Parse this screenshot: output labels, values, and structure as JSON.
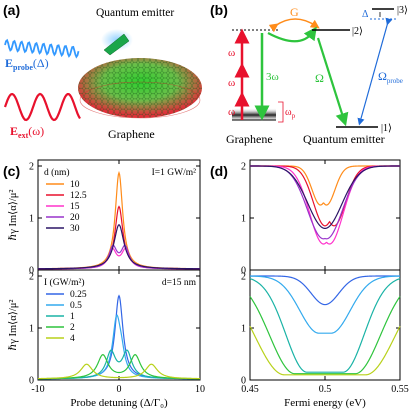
{
  "panels": {
    "a": {
      "label": "(a)",
      "quantum_emitter": "Quantum emitter",
      "graphene": "Graphene",
      "e_probe_main": "E",
      "e_probe_sub": "probe",
      "e_probe_arg": "(Δ)",
      "e_ext_main": "E",
      "e_ext_sub": "ext",
      "e_ext_arg": "(ω)"
    },
    "b": {
      "label": "(b)",
      "G": "G",
      "omega": "ω",
      "three_omega": "3ω",
      "Omega": "Ω",
      "Omega_probe_main": "Ω",
      "Omega_probe_sub": "probe",
      "omega_p_main": "ω",
      "omega_p_sub": "p",
      "Delta": "Δ",
      "ket2": "|2⟩",
      "ket3": "|3⟩",
      "ket1": "|1⟩",
      "graphene": "Graphene",
      "quantum_emitter": "Quantum emitter"
    },
    "c": {
      "label": "(c)"
    },
    "d": {
      "label": "(d)"
    }
  },
  "colors": {
    "orange": "#ff8c1a",
    "red": "#e8112d",
    "pink": "#ff33cc",
    "purple": "#9933cc",
    "navy": "#2b1566",
    "blue": "#3366e6",
    "sky": "#33aaee",
    "teal": "#1ab3a6",
    "yellowgreen": "#b8d11a",
    "green": "#2ec43d",
    "energy_blue": "#1f6bd9"
  },
  "chart_data": [
    {
      "id": "c-top",
      "type": "line",
      "ylabel": "ℏγ Im⟨α⟩/μ²",
      "ylim": [
        0,
        2
      ],
      "xlim": [
        -10,
        10
      ],
      "legend_title": "d (nm)",
      "annotation": "I=1 GW/m²",
      "series": [
        {
          "name": "10",
          "color": "#ff8c1a",
          "peaks": [
            {
              "x0": 0,
              "amp": 1.85,
              "w": 0.55
            }
          ]
        },
        {
          "name": "12.5",
          "color": "#e8112d",
          "peaks": [
            {
              "x0": 0,
              "amp": 1.2,
              "w": 0.6
            }
          ]
        },
        {
          "name": "15",
          "color": "#ff33cc",
          "peaks": [
            {
              "x0": -0.8,
              "amp": 0.35,
              "w": 0.6
            },
            {
              "x0": 0.8,
              "amp": 0.35,
              "w": 0.6
            }
          ]
        },
        {
          "name": "20",
          "color": "#9933cc",
          "peaks": [
            {
              "x0": -0.75,
              "amp": 0.4,
              "w": 0.6
            },
            {
              "x0": 0.75,
              "amp": 0.4,
              "w": 0.6
            }
          ]
        },
        {
          "name": "30",
          "color": "#2b1566",
          "peaks": [
            {
              "x0": 0,
              "amp": 0.85,
              "w": 0.75
            }
          ]
        }
      ]
    },
    {
      "id": "c-bottom",
      "type": "line",
      "xlabel": "Probe detuning (Δ/Γ₀)",
      "ylabel": "ℏγ Im⟨α⟩/μ²",
      "ylim": [
        0,
        2
      ],
      "xlim": [
        -10,
        10
      ],
      "xticks": [
        -10,
        0,
        10
      ],
      "legend_title": "I (GW/m²)",
      "annotation": "d=15 nm",
      "series": [
        {
          "name": "0.25",
          "color": "#3366e6",
          "peaks": [
            {
              "x0": 0,
              "amp": 1.6,
              "w": 0.6
            }
          ]
        },
        {
          "name": "0.5",
          "color": "#33aaee",
          "peaks": [
            {
              "x0": -0.3,
              "amp": 1.1,
              "w": 0.6
            },
            {
              "x0": 0.3,
              "amp": 0.3,
              "w": 0.5
            }
          ]
        },
        {
          "name": "1",
          "color": "#1ab3a6",
          "peaks": [
            {
              "x0": -1.0,
              "amp": 0.5,
              "w": 0.7
            },
            {
              "x0": 1.0,
              "amp": 0.5,
              "w": 0.7
            }
          ]
        },
        {
          "name": "2",
          "color": "#2ec43d",
          "peaks": [
            {
              "x0": -2.0,
              "amp": 0.45,
              "w": 0.8
            },
            {
              "x0": 2.0,
              "amp": 0.45,
              "w": 0.8
            }
          ]
        },
        {
          "name": "4",
          "color": "#b8d11a",
          "peaks": [
            {
              "x0": -4.0,
              "amp": 0.28,
              "w": 0.9
            },
            {
              "x0": 4.0,
              "amp": 0.28,
              "w": 0.9
            }
          ]
        }
      ]
    },
    {
      "id": "d-top",
      "type": "line",
      "ylim": [
        0,
        2
      ],
      "xlim": [
        0.45,
        0.55
      ],
      "series": [
        {
          "color": "#ff8c1a",
          "center": 0.499,
          "depth": 0.75,
          "width": 0.008,
          "skew": 0.002
        },
        {
          "color": "#e8112d",
          "center": 0.503,
          "depth": 1.15,
          "width": 0.011,
          "skew": 0.003
        },
        {
          "color": "#ff33cc",
          "center": 0.501,
          "depth": 1.5,
          "width": 0.013,
          "skew": 0.002
        },
        {
          "color": "#9933cc",
          "center": 0.5,
          "depth": 1.4,
          "width": 0.015,
          "skew": 0.001
        },
        {
          "color": "#2b1566",
          "center": 0.5,
          "depth": 1.2,
          "width": 0.016,
          "skew": 0.0
        }
      ]
    },
    {
      "id": "d-bottom",
      "type": "line",
      "xlabel": "Fermi energy (eV)",
      "ylim": [
        0,
        2
      ],
      "xlim": [
        0.45,
        0.55
      ],
      "xticks": [
        0.45,
        0.5,
        0.55
      ],
      "series": [
        {
          "color": "#3366e6",
          "center": 0.5,
          "depth": 0.55,
          "width": 0.013,
          "flat": 0.0
        },
        {
          "color": "#33aaee",
          "center": 0.5,
          "depth": 1.1,
          "width": 0.018,
          "flat": 0.004
        },
        {
          "color": "#1ab3a6",
          "center": 0.5,
          "depth": 1.85,
          "width": 0.02,
          "flat": 0.012
        },
        {
          "color": "#2ec43d",
          "center": 0.5,
          "depth": 1.88,
          "width": 0.024,
          "flat": 0.02
        },
        {
          "color": "#b8d11a",
          "center": 0.5,
          "depth": 1.9,
          "width": 0.028,
          "flat": 0.027
        }
      ]
    }
  ]
}
